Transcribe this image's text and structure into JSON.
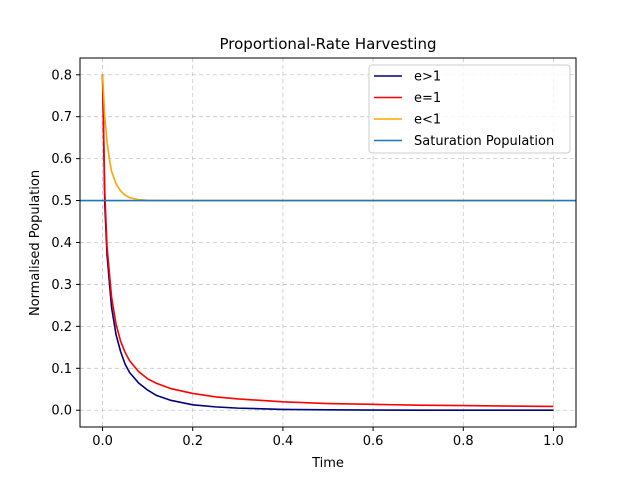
{
  "chart_data": {
    "type": "line",
    "title": "Proportional-Rate Harvesting",
    "xlabel": "Time",
    "ylabel": "Normalised Population",
    "xlim": [
      -0.05,
      1.05
    ],
    "ylim": [
      -0.04,
      0.84
    ],
    "xticks": [
      0.0,
      0.2,
      0.4,
      0.6,
      0.8,
      1.0
    ],
    "xtick_labels": [
      "0.0",
      "0.2",
      "0.4",
      "0.6",
      "0.8",
      "1.0"
    ],
    "yticks": [
      0.0,
      0.1,
      0.2,
      0.3,
      0.4,
      0.5,
      0.6,
      0.7,
      0.8
    ],
    "ytick_labels": [
      "0.0",
      "0.1",
      "0.2",
      "0.3",
      "0.4",
      "0.5",
      "0.6",
      "0.7",
      "0.8"
    ],
    "grid": true,
    "legend_position": "top-right",
    "series": [
      {
        "name": "e>1",
        "color": "#00007f",
        "x": [
          0.0,
          0.005,
          0.01,
          0.02,
          0.03,
          0.04,
          0.05,
          0.06,
          0.08,
          0.1,
          0.12,
          0.15,
          0.2,
          0.25,
          0.3,
          0.4,
          0.5,
          0.6,
          0.7,
          0.8,
          0.9,
          1.0
        ],
        "y": [
          0.8,
          0.49,
          0.37,
          0.245,
          0.18,
          0.14,
          0.11,
          0.09,
          0.065,
          0.048,
          0.035,
          0.024,
          0.013,
          0.008,
          0.005,
          0.002,
          0.001,
          0.0005,
          0.0002,
          0.0001,
          0.0,
          0.0
        ]
      },
      {
        "name": "e=1",
        "color": "#ff0000",
        "x": [
          0.0,
          0.005,
          0.01,
          0.02,
          0.03,
          0.04,
          0.05,
          0.06,
          0.08,
          0.1,
          0.12,
          0.15,
          0.2,
          0.25,
          0.3,
          0.4,
          0.5,
          0.6,
          0.7,
          0.8,
          0.9,
          1.0
        ],
        "y": [
          0.8,
          0.52,
          0.39,
          0.27,
          0.205,
          0.165,
          0.138,
          0.118,
          0.092,
          0.075,
          0.064,
          0.052,
          0.04,
          0.032,
          0.027,
          0.02,
          0.016,
          0.014,
          0.012,
          0.011,
          0.01,
          0.009
        ]
      },
      {
        "name": "e<1",
        "color": "#ffa500",
        "x": [
          0.0,
          0.005,
          0.01,
          0.015,
          0.02,
          0.03,
          0.04,
          0.05,
          0.06,
          0.08,
          0.1,
          0.12,
          0.15,
          0.2,
          0.3,
          0.5,
          0.7,
          1.0
        ],
        "y": [
          0.8,
          0.7,
          0.64,
          0.6,
          0.57,
          0.54,
          0.523,
          0.513,
          0.507,
          0.502,
          0.5005,
          0.5002,
          0.5,
          0.5,
          0.5,
          0.5,
          0.5,
          0.5
        ]
      },
      {
        "name": "Saturation Population",
        "color": "#1f77b4",
        "type": "hline",
        "y_value": 0.5
      }
    ]
  }
}
